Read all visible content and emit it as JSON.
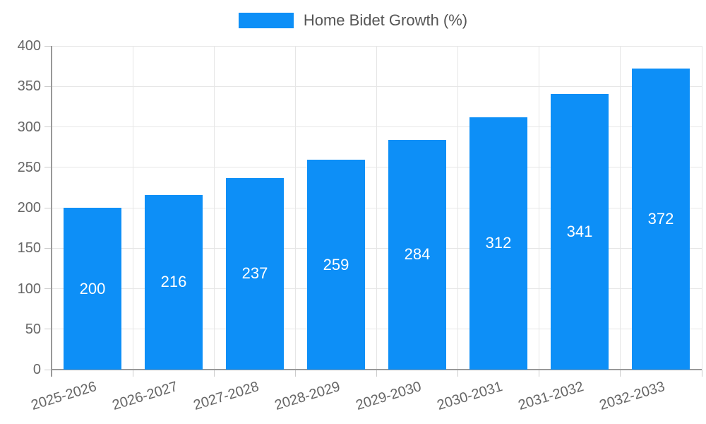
{
  "chart_data": {
    "type": "bar",
    "title": "Home Bidet Growth (%)",
    "categories": [
      "2025-2026",
      "2026-2027",
      "2027-2028",
      "2028-2029",
      "2029-2030",
      "2030-2031",
      "2031-2032",
      "2032-2033"
    ],
    "values": [
      200,
      216,
      237,
      259,
      284,
      312,
      341,
      372
    ],
    "xlabel": "",
    "ylabel": "",
    "ylim": [
      0,
      400
    ],
    "ytick_step": 50,
    "yticks": [
      0,
      50,
      100,
      150,
      200,
      250,
      300,
      350,
      400
    ],
    "grid": true,
    "legend": {
      "position": "top",
      "label": "Home Bidet Growth (%)"
    },
    "x_label_rotation_deg": -17,
    "colors": {
      "bar": "#0d8ff7",
      "value_label": "#ffffff",
      "axis_text": "#666666",
      "grid_line": "#e6e6e6",
      "axis_line": "#999999",
      "tick_mark": "#cccccc",
      "legend_text": "#555555",
      "background": "#ffffff"
    }
  }
}
